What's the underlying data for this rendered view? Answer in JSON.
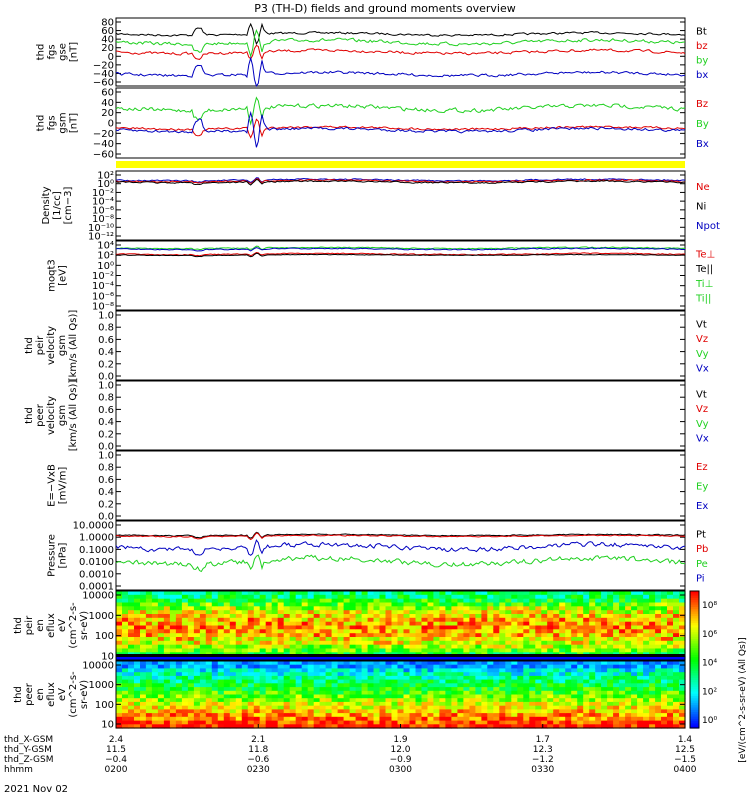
{
  "title": "P3 (TH-D) fields and ground moments overview",
  "date": "2021 Nov 02",
  "colors": {
    "black": "#000000",
    "red": "#e00000",
    "green": "#20d020",
    "blue": "#0000c0",
    "yellow": "#ffff00"
  },
  "panels": [
    {
      "id": "fgs-gse",
      "ylabel": [
        "thd",
        "fgs",
        "gse",
        "[nT]"
      ],
      "ticks": [
        "80",
        "60",
        "40",
        "20",
        "0",
        "−20",
        "−40",
        "−60"
      ],
      "legend": [
        {
          "text": "Bt",
          "color": "black"
        },
        {
          "text": "bz",
          "color": "red"
        },
        {
          "text": "by",
          "color": "green"
        },
        {
          "text": "bx",
          "color": "blue"
        }
      ]
    },
    {
      "id": "fgs-gsm",
      "ylabel": [
        "thd",
        "fgs",
        "gsm",
        "[nT]"
      ],
      "ticks": [
        "60",
        "40",
        "20",
        "0",
        "−20",
        "−40",
        "−60"
      ],
      "legend": [
        {
          "text": "Bz",
          "color": "red"
        },
        {
          "text": "By",
          "color": "green"
        },
        {
          "text": "Bx",
          "color": "blue"
        }
      ]
    },
    {
      "id": "density",
      "ylabel": [
        "Density",
        "[1/cc]",
        "[cm−3]"
      ],
      "ticks": [
        "10²",
        "10⁰",
        "10⁻²",
        "10⁻⁴",
        "10⁻⁶",
        "10⁻⁸",
        "10⁻¹⁰",
        "10⁻¹²"
      ],
      "legend": [
        {
          "text": "Ne",
          "color": "red"
        },
        {
          "text": "Ni",
          "color": "black"
        },
        {
          "text": "Npot",
          "color": "blue"
        }
      ]
    },
    {
      "id": "temp",
      "ylabel": [
        "moqt3",
        "[eV]"
      ],
      "ticks": [
        "10⁴",
        "10²",
        "10⁰",
        "10⁻²",
        "10⁻⁴",
        "10⁻⁶",
        "10⁻⁸"
      ],
      "legend": [
        {
          "text": "Te⊥",
          "color": "red"
        },
        {
          "text": "Te||",
          "color": "black"
        },
        {
          "text": "Ti⊥",
          "color": "green"
        },
        {
          "text": "Ti||",
          "color": "green"
        }
      ]
    },
    {
      "id": "peir-vel",
      "ylabel": [
        "thd",
        "peir",
        "velocity",
        "gsm",
        "[km/s (All Qs)]"
      ],
      "ticks": [
        "1.0",
        "0.8",
        "0.6",
        "0.4",
        "0.2",
        "0.0"
      ],
      "legend": [
        {
          "text": "Vt",
          "color": "black"
        },
        {
          "text": "Vz",
          "color": "red"
        },
        {
          "text": "Vy",
          "color": "green"
        },
        {
          "text": "Vx",
          "color": "blue"
        }
      ]
    },
    {
      "id": "peer-vel",
      "ylabel": [
        "thd",
        "peer",
        "velocity",
        "gsm",
        "[km/s (All Qs)]"
      ],
      "ticks": [
        "1.0",
        "0.8",
        "0.6",
        "0.4",
        "0.2",
        "0.0"
      ],
      "legend": [
        {
          "text": "Vt",
          "color": "black"
        },
        {
          "text": "Vz",
          "color": "red"
        },
        {
          "text": "Vy",
          "color": "green"
        },
        {
          "text": "Vx",
          "color": "blue"
        }
      ]
    },
    {
      "id": "efield",
      "ylabel": [
        "E=−VxB",
        "[mV/m]"
      ],
      "ticks": [
        "1.0",
        "0.8",
        "0.6",
        "0.4",
        "0.2",
        "0.0"
      ],
      "legend": [
        {
          "text": "Ez",
          "color": "red"
        },
        {
          "text": "Ey",
          "color": "green"
        },
        {
          "text": "Ex",
          "color": "blue"
        }
      ]
    },
    {
      "id": "pressure",
      "ylabel": [
        "Pressure",
        "[nPa]"
      ],
      "ticks": [
        "10.0000",
        "1.0000",
        "0.1000",
        "0.0100",
        "0.0010",
        "0.0001"
      ],
      "legend": [
        {
          "text": "Pt",
          "color": "black"
        },
        {
          "text": "Pb",
          "color": "red"
        },
        {
          "text": "Pe",
          "color": "green"
        },
        {
          "text": "Pi",
          "color": "blue"
        }
      ]
    },
    {
      "id": "peir-eflux",
      "ylabel": [
        "thd",
        "peir",
        "en",
        "eflux",
        "eV",
        "(cm^2-s-",
        "sr-eV)"
      ],
      "ticks": [
        "10000",
        "1000",
        "100",
        "10"
      ]
    },
    {
      "id": "peer-eflux",
      "ylabel": [
        "thd",
        "peer",
        "en",
        "eflux",
        "eV",
        "(cm^2-s-",
        "sr-eV)"
      ],
      "ticks": [
        "10000",
        "1000",
        "100",
        "10"
      ]
    }
  ],
  "colorbar": {
    "ticks": [
      "10⁸",
      "10⁶",
      "10⁴",
      "10²",
      "10⁰"
    ],
    "label": "[eV/(cm^2-s-sr-eV) (All Qs)]"
  },
  "xaxis": {
    "rowlabels": [
      "thd_X-GSM",
      "thd_Y-GSM",
      "thd_Z-GSM",
      "hhmm"
    ],
    "cols": [
      [
        "2.4",
        "11.5",
        "−0.4",
        "0200"
      ],
      [
        "2.1",
        "11.8",
        "−0.6",
        "0230"
      ],
      [
        "1.9",
        "12.0",
        "−0.9",
        "0300"
      ],
      [
        "1.7",
        "12.3",
        "−1.2",
        "0330"
      ],
      [
        "1.4",
        "12.5",
        "−1.5",
        "0400"
      ]
    ]
  },
  "chart_data": {
    "type": "line",
    "title": "P3 (TH-D) fields and ground moments overview",
    "x": [
      "0200",
      "0230",
      "0300",
      "0330",
      "0400"
    ],
    "series": [
      {
        "name": "Bt",
        "values": [
          48,
          55,
          45,
          44,
          42
        ]
      },
      {
        "name": "bz",
        "values": [
          15,
          18,
          12,
          10,
          10
        ]
      },
      {
        "name": "by",
        "values": [
          35,
          40,
          38,
          33,
          32
        ]
      },
      {
        "name": "bx",
        "values": [
          -30,
          -35,
          -28,
          -30,
          -30
        ]
      },
      {
        "name": "Ni",
        "values": [
          2,
          3,
          1,
          0.5,
          1
        ]
      },
      {
        "name": "Pt",
        "values": [
          1.1,
          1.2,
          1.0,
          0.9,
          0.8
        ]
      },
      {
        "name": "Pi",
        "values": [
          0.3,
          0.4,
          0.05,
          0.02,
          0.03
        ]
      },
      {
        "name": "Pe",
        "values": [
          0.01,
          0.02,
          0.008,
          0.002,
          0.003
        ]
      }
    ]
  }
}
